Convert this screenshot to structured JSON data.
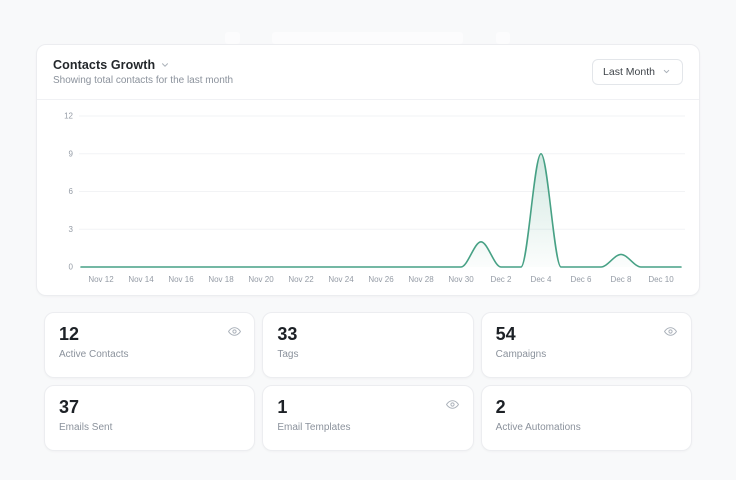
{
  "chart_card": {
    "title": "Contacts Growth",
    "subtitle": "Showing total contacts for the last month",
    "range_selector": "Last Month"
  },
  "chart_data": {
    "type": "area",
    "title": "Contacts Growth",
    "x": [
      "Nov 11",
      "Nov 12",
      "Nov 13",
      "Nov 14",
      "Nov 15",
      "Nov 16",
      "Nov 17",
      "Nov 18",
      "Nov 19",
      "Nov 20",
      "Nov 21",
      "Nov 22",
      "Nov 23",
      "Nov 24",
      "Nov 25",
      "Nov 26",
      "Nov 27",
      "Nov 28",
      "Nov 29",
      "Nov 30",
      "Dec 1",
      "Dec 2",
      "Dec 3",
      "Dec 4",
      "Dec 5",
      "Dec 6",
      "Dec 7",
      "Dec 8",
      "Dec 9",
      "Dec 10",
      "Dec 11"
    ],
    "values": [
      0,
      0,
      0,
      0,
      0,
      0,
      0,
      0,
      0,
      0,
      0,
      0,
      0,
      0,
      0,
      0,
      0,
      0,
      0,
      0,
      2,
      0,
      0,
      9,
      0,
      0,
      0,
      1,
      0,
      0,
      0
    ],
    "x_tick_labels": [
      "Nov 12",
      "Nov 14",
      "Nov 16",
      "Nov 18",
      "Nov 20",
      "Nov 22",
      "Nov 24",
      "Nov 26",
      "Nov 28",
      "Nov 30",
      "Dec 2",
      "Dec 4",
      "Dec 6",
      "Dec 8",
      "Dec 10"
    ],
    "y_ticks": [
      0,
      3,
      6,
      9,
      12
    ],
    "ylim": [
      0,
      12
    ],
    "grid": true,
    "legend_position": "none",
    "line_color": "#47a185",
    "grid_color": "#f2f3f5",
    "axis_text_color": "#949ba5"
  },
  "stats": [
    {
      "value": "12",
      "label": "Active Contacts",
      "eye": true
    },
    {
      "value": "33",
      "label": "Tags",
      "eye": false
    },
    {
      "value": "54",
      "label": "Campaigns",
      "eye": true
    },
    {
      "value": "37",
      "label": "Emails Sent",
      "eye": false
    },
    {
      "value": "1",
      "label": "Email Templates",
      "eye": true
    },
    {
      "value": "2",
      "label": "Active Automations",
      "eye": false
    }
  ]
}
